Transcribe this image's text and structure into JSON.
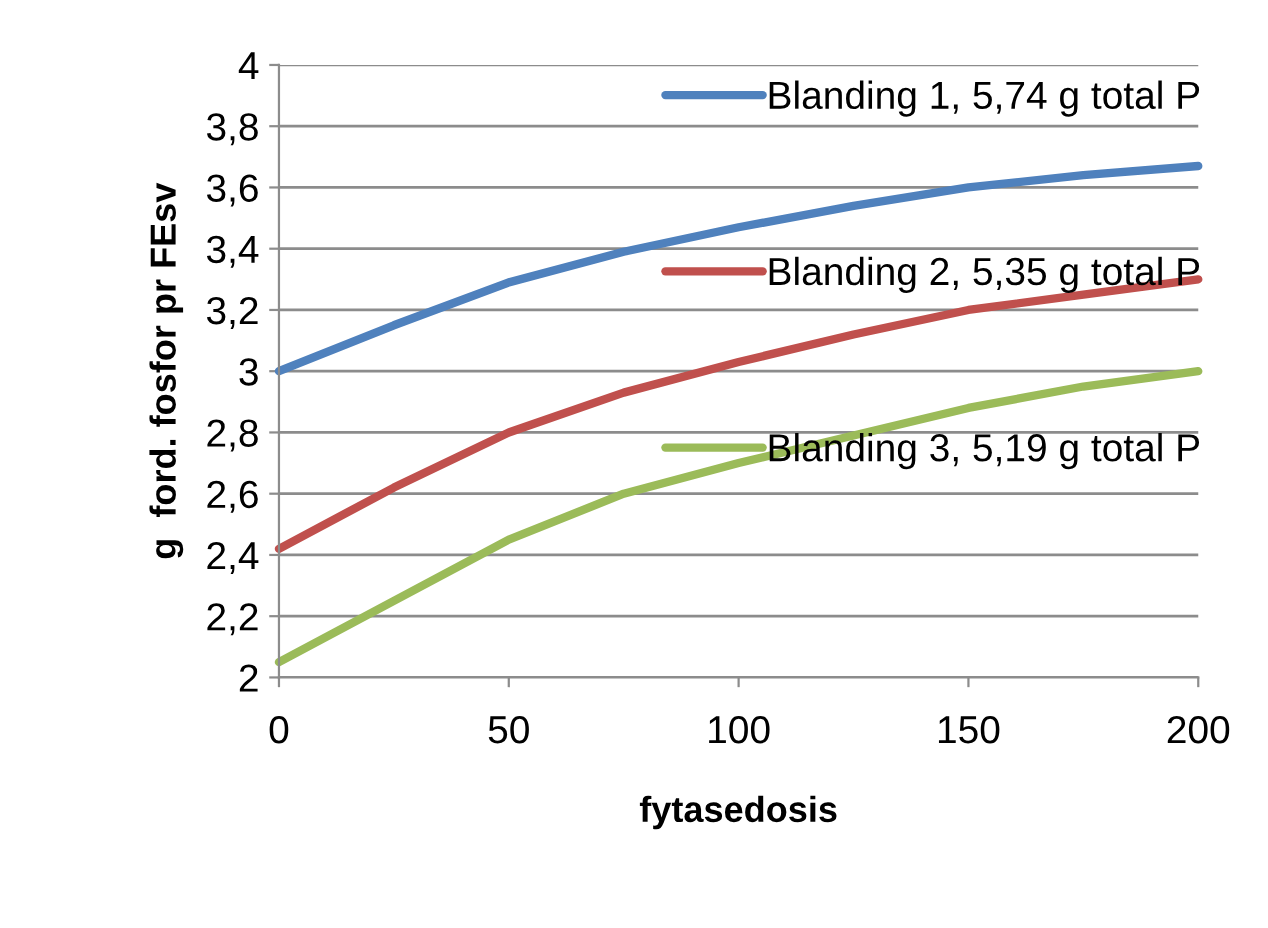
{
  "chart_data": {
    "type": "line",
    "xlabel": "fytasedosis",
    "ylabel": "g  ford. fosfor pr FEsv",
    "x": [
      0,
      25,
      50,
      75,
      100,
      125,
      150,
      175,
      200
    ],
    "series": [
      {
        "name": "Blanding 1, 5,74 g total P",
        "color": "#4f81bd",
        "values": [
          3.0,
          3.15,
          3.29,
          3.39,
          3.47,
          3.54,
          3.6,
          3.64,
          3.67
        ]
      },
      {
        "name": "Blanding 2, 5,35 g total P",
        "color": "#c0504d",
        "values": [
          2.42,
          2.62,
          2.8,
          2.93,
          3.03,
          3.12,
          3.2,
          3.25,
          3.3
        ]
      },
      {
        "name": "Blanding 3, 5,19 g total P",
        "color": "#9bbb59",
        "values": [
          2.05,
          2.25,
          2.45,
          2.6,
          2.7,
          2.79,
          2.88,
          2.95,
          3.0
        ]
      }
    ],
    "xlim": [
      0,
      200
    ],
    "xticks": [
      0,
      50,
      100,
      150,
      200
    ],
    "ylim": [
      2,
      4
    ],
    "yticks": [
      2,
      {
        "value": 2.2,
        "label": "2,2"
      },
      {
        "value": 2.4,
        "label": "2,4"
      },
      {
        "value": 2.6,
        "label": "2,6"
      },
      {
        "value": 2.8,
        "label": "2,8"
      },
      3,
      {
        "value": 3.2,
        "label": "3,2"
      },
      {
        "value": 3.4,
        "label": "3,4"
      },
      {
        "value": 3.6,
        "label": "3,6"
      },
      {
        "value": 3.8,
        "label": "3,8"
      },
      4
    ],
    "grid": "y",
    "legend": "top right",
    "marker": "none",
    "line_style": "solid"
  }
}
